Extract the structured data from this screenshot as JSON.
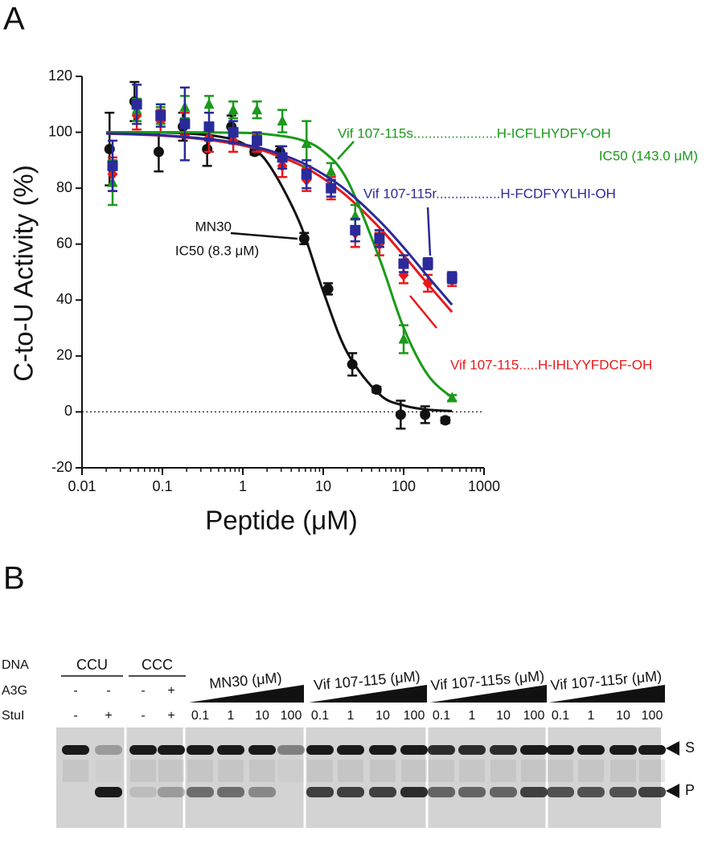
{
  "panels": [
    "A",
    "B"
  ],
  "chart_data": {
    "type": "dose-response",
    "xlabel": "Peptide (μM)",
    "ylabel": "C-to-U Activity (%)",
    "xscale": "log",
    "xlim": [
      0.01,
      1000
    ],
    "xticks": [
      0.01,
      0.1,
      1,
      10,
      100,
      1000
    ],
    "ylim": [
      -20,
      120
    ],
    "yticks": [
      -20,
      0,
      20,
      40,
      60,
      80,
      100,
      120
    ],
    "reference_line": 0,
    "fit_x": [
      0.02,
      0.05,
      0.1,
      0.2,
      0.5,
      1,
      2,
      5,
      10,
      20,
      50,
      100,
      200,
      400
    ],
    "series": [
      {
        "name": "MN30",
        "color": "#111111",
        "marker": "circle",
        "x": [
          0.022,
          0.045,
          0.09,
          0.18,
          0.36,
          0.72,
          1.4,
          2.9,
          5.8,
          11.5,
          23,
          46,
          92,
          185,
          330
        ],
        "values": [
          94,
          111,
          93,
          102,
          94,
          102,
          93,
          93,
          62,
          44,
          17,
          8,
          -1,
          -1,
          -3
        ],
        "errors": [
          13,
          7,
          7,
          5,
          6,
          4,
          1,
          2,
          2,
          2,
          4,
          1,
          5,
          3,
          1
        ],
        "fit": [
          100,
          100,
          99.9,
          99.6,
          98.5,
          96,
          89.4,
          68.2,
          43.1,
          21.1,
          6.3,
          2.3,
          0.8,
          0.3
        ]
      },
      {
        "name": "Vif 107-115.....H-IHLYYFDCF-OH",
        "color": "#e8191a",
        "marker": "diamond",
        "x": [
          0.024,
          0.048,
          0.095,
          0.19,
          0.38,
          0.76,
          1.5,
          3.1,
          6.2,
          12.5,
          25,
          50,
          100,
          200,
          400
        ],
        "values": [
          85,
          106,
          104,
          103,
          98,
          97,
          96,
          88,
          83,
          80,
          64,
          60,
          49,
          46,
          47
        ],
        "errors": [
          6,
          5,
          4,
          4,
          5,
          4,
          3,
          4,
          4,
          4,
          5,
          4,
          3,
          3,
          2
        ],
        "fit": [
          99.5,
          99.2,
          98.8,
          98.1,
          96.8,
          95.3,
          93,
          88.5,
          83.5,
          77,
          65.9,
          56,
          45.7,
          35.7
        ]
      },
      {
        "name": "Vif 107-115s......................H-ICFLHYDFY-OH",
        "color": "#1a9a1a",
        "marker": "triangle",
        "x": [
          0.024,
          0.048,
          0.095,
          0.19,
          0.38,
          0.76,
          1.5,
          3.1,
          6.2,
          12.5,
          25,
          50,
          100,
          400
        ],
        "values": [
          82,
          108,
          106,
          109,
          110,
          108,
          108,
          104,
          96,
          86,
          70,
          62,
          26,
          5
        ],
        "errors": [
          8,
          4,
          3,
          4,
          3,
          3,
          3,
          4,
          8,
          3,
          4,
          3,
          5,
          1
        ],
        "fit": [
          100,
          100,
          100,
          100,
          99.9,
          99.8,
          99.3,
          97.5,
          93.2,
          82.8,
          54.9,
          30.1,
          13.2,
          5.1
        ]
      },
      {
        "name": "Vif 107-115r.................H-FCDFYYLHI-OH",
        "color": "#2a2a9a",
        "marker": "square",
        "x": [
          0.024,
          0.048,
          0.095,
          0.19,
          0.38,
          0.76,
          1.5,
          3.1,
          6.2,
          12.5,
          25,
          50,
          100,
          200,
          400
        ],
        "values": [
          88,
          110,
          106,
          103,
          102,
          100,
          97,
          91,
          85,
          80,
          65,
          62,
          53,
          53,
          48
        ],
        "errors": [
          9,
          7,
          4,
          13,
          5,
          4,
          3,
          4,
          5,
          3,
          4,
          3,
          3,
          2,
          2
        ],
        "fit": [
          99.6,
          99.3,
          98.9,
          98.3,
          97.2,
          95.7,
          93.7,
          89.6,
          85,
          78.9,
          68.3,
          58.8,
          48.4,
          38.3
        ]
      }
    ],
    "annotations": [
      "IC50 (8.3 μM)",
      "IC50 (143.0 μM)"
    ]
  },
  "gel": {
    "row_labels": [
      "DNA",
      "A3G",
      "StuI"
    ],
    "substrates": [
      {
        "label": "CCU",
        "a3g": [
          "-",
          "-"
        ],
        "stui": [
          "-",
          "+"
        ]
      },
      {
        "label": "CCC",
        "a3g": [
          "-",
          "+"
        ],
        "stui": [
          "-",
          "+"
        ]
      }
    ],
    "titrations": [
      {
        "label": "MN30 (μM)",
        "concentrations": [
          "0.1",
          "1",
          "10",
          "100"
        ]
      },
      {
        "label": "Vif 107-115 (μM)",
        "concentrations": [
          "0.1",
          "1",
          "10",
          "100"
        ]
      },
      {
        "label": "Vif 107-115s (μM)",
        "concentrations": [
          "0.1",
          "1",
          "10",
          "100"
        ]
      },
      {
        "label": "Vif 107-115r (μM)",
        "concentrations": [
          "0.1",
          "1",
          "10",
          "100"
        ]
      }
    ],
    "bands": [
      "S",
      "P"
    ]
  }
}
